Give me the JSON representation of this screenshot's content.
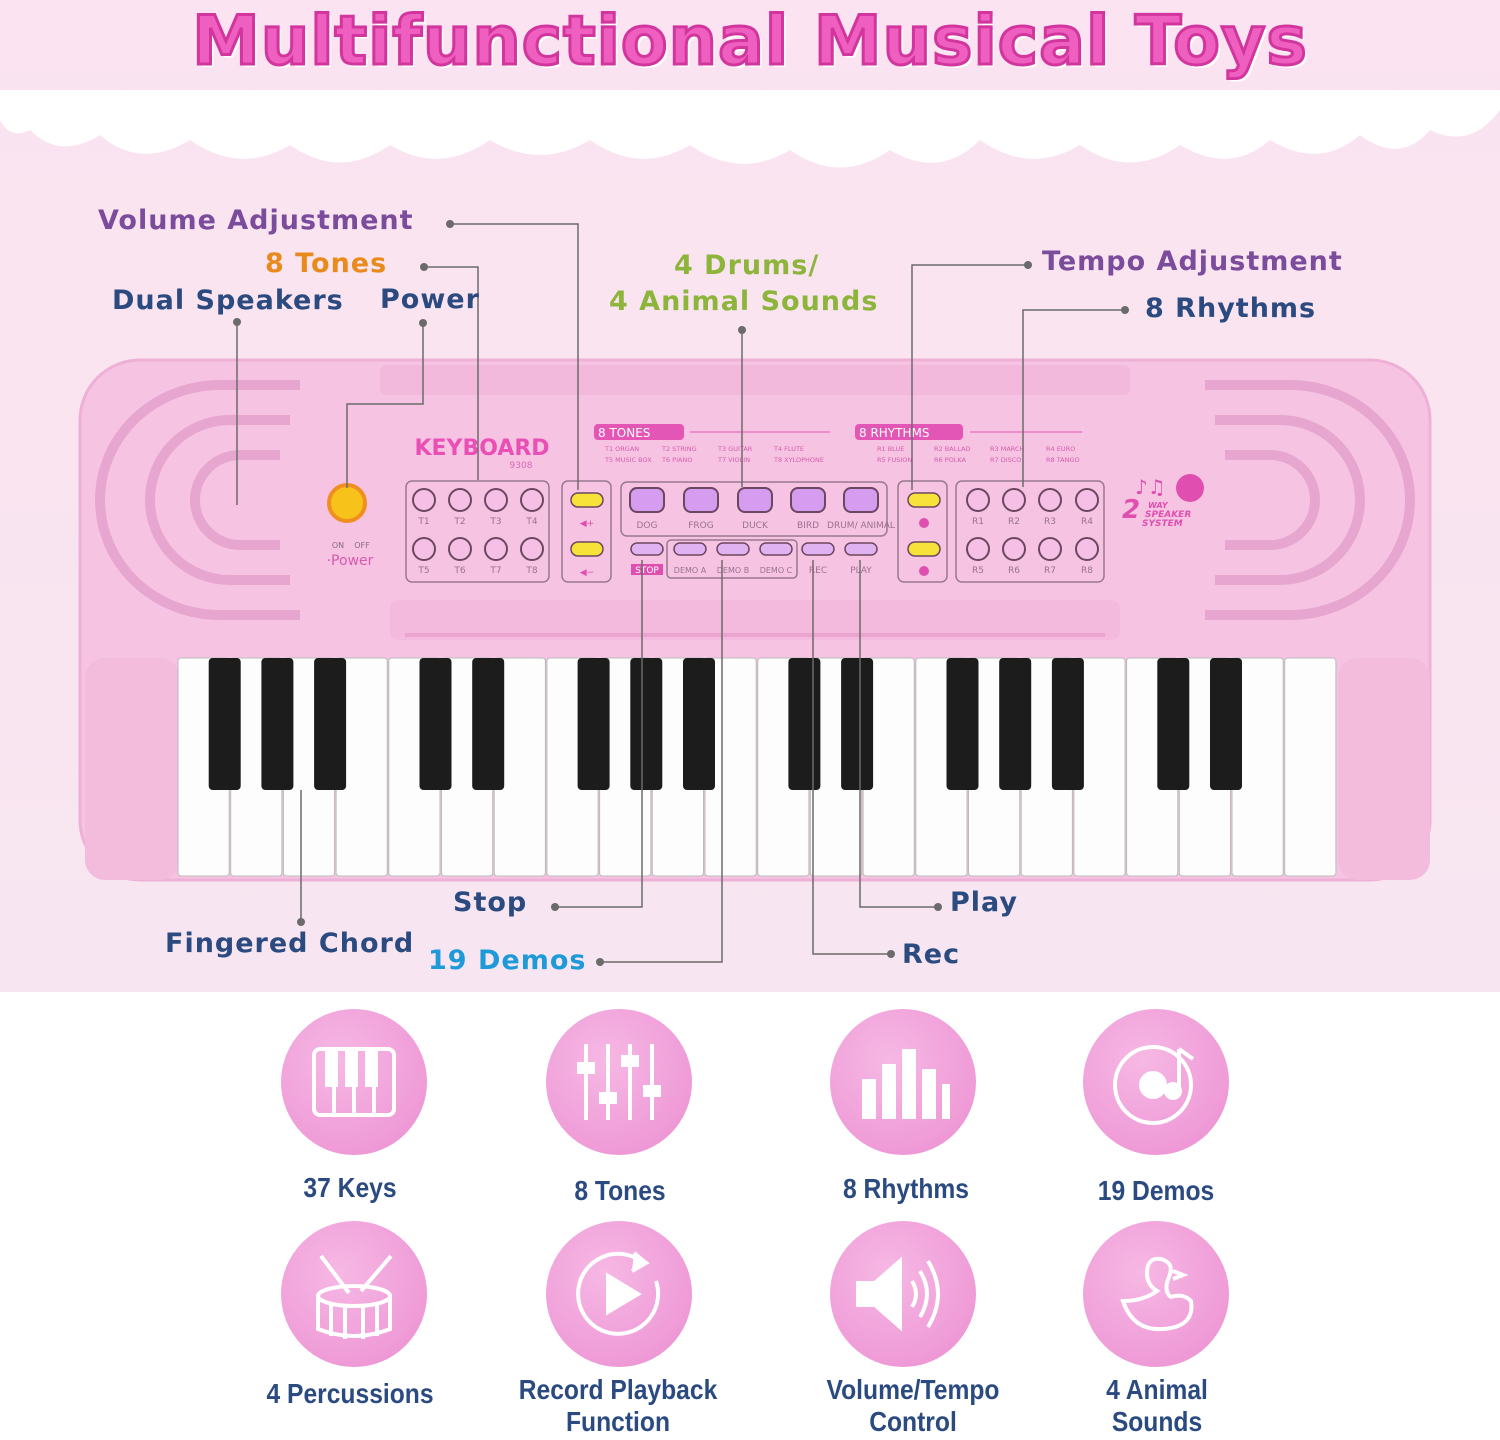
{
  "title": "Multifunctional Musical Toys",
  "callouts": {
    "volume": "Volume Adjustment",
    "tones": "8 Tones",
    "speakers": "Dual Speakers",
    "power": "Power",
    "drums_line1": "4 Drums/",
    "drums_line2": "4 Animal Sounds",
    "tempo": "Tempo Adjustment",
    "rhythms": "8 Rhythms",
    "stop": "Stop",
    "chord": "Fingered Chord",
    "demos": "19 Demos",
    "play": "Play",
    "rec": "Rec"
  },
  "colors": {
    "title": "#ef5fbf",
    "purple": "#7b4c9c",
    "orange": "#e98a1c",
    "navy": "#2b4a80",
    "green": "#8db53b",
    "blue": "#1e9ad8",
    "body": "#f6c4e2"
  },
  "keyboard": {
    "brand": "KEYBOARD",
    "model": "9308",
    "tones_header": "8 TONES",
    "rhythms_header": "8 RHYTHMS",
    "tone_names": [
      "T1 ORGAN",
      "T2 STRING",
      "T3 GUITAR",
      "T4 FLUTE",
      "T5 MUSIC BOX",
      "T6 PIANO",
      "T7 VIOLIN",
      "T8 XYLOPHONE"
    ],
    "rhythm_names": [
      "R1 BLUE",
      "R2 BALLAD",
      "R3 MARCH",
      "R4 EURO",
      "R5 FUSION",
      "R6 POLKA",
      "R7 DISCO",
      "R8 TANGO"
    ],
    "tone_buttons": [
      "T1",
      "T2",
      "T3",
      "T4",
      "T5",
      "T6",
      "T7",
      "T8"
    ],
    "rhythm_buttons": [
      "R1",
      "R2",
      "R3",
      "R4",
      "R5",
      "R6",
      "R7",
      "R8"
    ],
    "sound_buttons": [
      "DOG",
      "FROG",
      "DUCK",
      "BIRD",
      "DRUM/ ANIMAL"
    ],
    "control_buttons": [
      "STOP",
      "DEMO A",
      "DEMO B",
      "DEMO C",
      "REC",
      "PLAY"
    ],
    "power_on": "ON",
    "power_off": "OFF",
    "power_label": "·Power",
    "speaker_logo": "2 WAY SPEAKER SYSTEM",
    "keys": 37
  },
  "features": [
    {
      "label": "37 Keys",
      "icon": "piano-keys-icon"
    },
    {
      "label": "8 Tones",
      "icon": "sliders-icon"
    },
    {
      "label": "8 Rhythms",
      "icon": "equalizer-icon"
    },
    {
      "label": "19 Demos",
      "icon": "music-disc-icon"
    },
    {
      "label": "4 Percussions",
      "icon": "drum-icon"
    },
    {
      "label": "Record Playback Function",
      "icon": "play-record-icon"
    },
    {
      "label": "Volume/Tempo Control",
      "icon": "speaker-icon"
    },
    {
      "label": "4 Animal Sounds",
      "icon": "duck-icon"
    }
  ]
}
